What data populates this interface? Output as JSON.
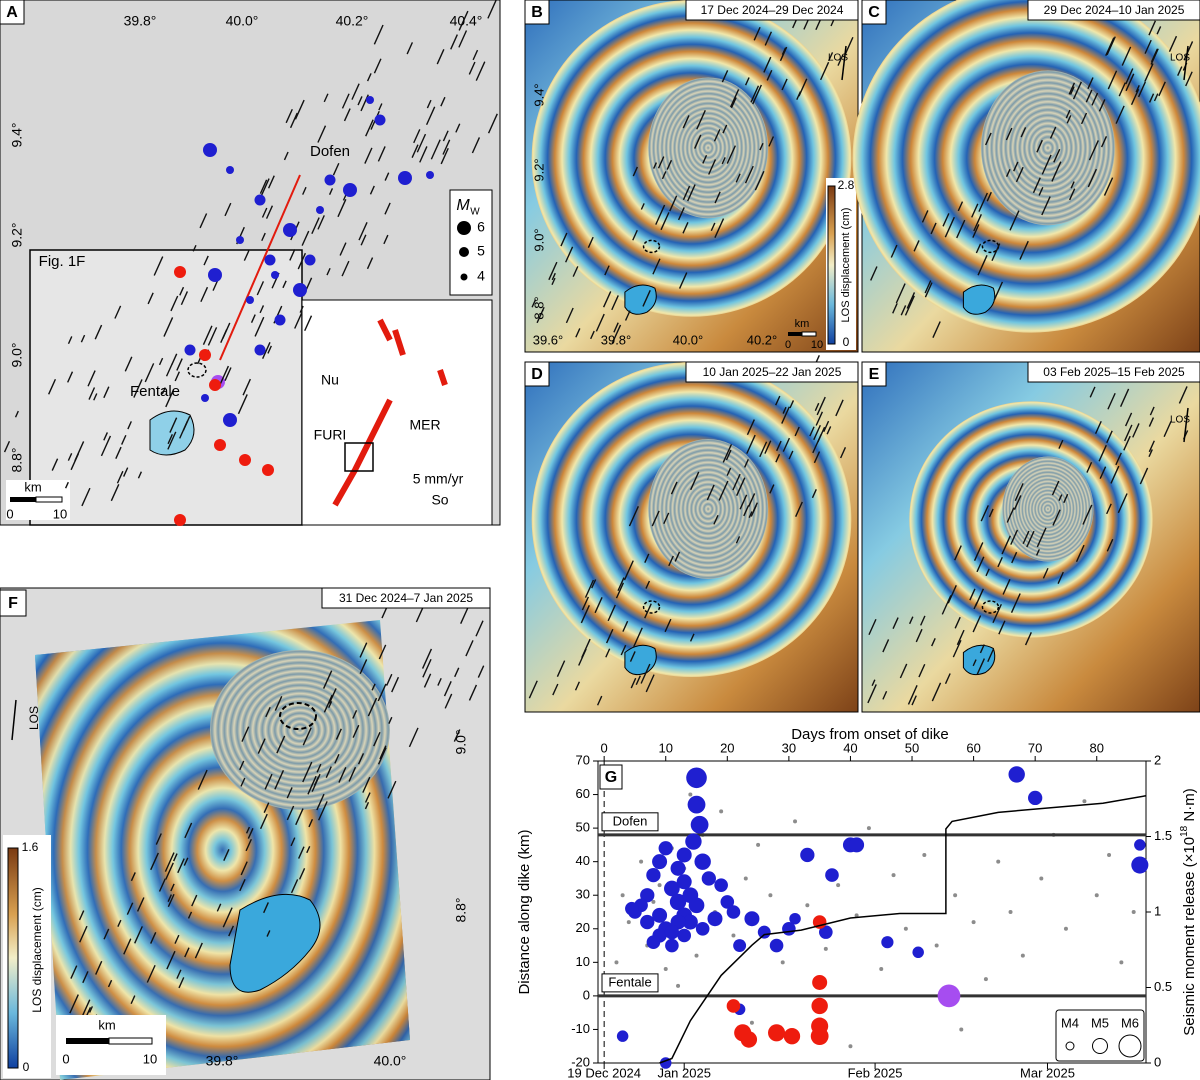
{
  "panels": {
    "A": {
      "label": "A",
      "lon_labels": [
        "39.8°",
        "40.0°",
        "40.2°",
        "40.4°"
      ],
      "lat_labels": [
        "9.4°",
        "9.2°",
        "9.0°",
        "8.8°"
      ],
      "places": [
        "Dofen",
        "Fentale"
      ],
      "inset_ref": "Fig. 1F",
      "legend_title": "M",
      "legend_sub": "W",
      "legend_sizes": [
        "6",
        "5",
        "4"
      ],
      "scale_unit": "km",
      "scale_labels": [
        "0",
        "10"
      ],
      "inset_labels": [
        "Nu",
        "FURI",
        "MER",
        "5 mm/yr",
        "So"
      ]
    },
    "B": {
      "label": "B",
      "dates": "17 Dec 2024–29 Dec 2024",
      "los": "LOS",
      "lat_labels": [
        "9.4°",
        "9.2°",
        "9.0°",
        "8.8°"
      ],
      "lon_labels": [
        "39.6°",
        "39.8°",
        "40.0°",
        "40.2°"
      ],
      "colorbar_max": "2.8",
      "colorbar_min": "0",
      "colorbar_title": "LOS displacement (cm)",
      "scale_unit": "km",
      "scale_labels": [
        "0",
        "10"
      ]
    },
    "C": {
      "label": "C",
      "dates": "29 Dec 2024–10 Jan 2025",
      "los": "LOS"
    },
    "D": {
      "label": "D",
      "dates": "10 Jan 2025–22 Jan 2025"
    },
    "E": {
      "label": "E",
      "dates": "03 Feb 2025–15 Feb 2025",
      "los": "LOS"
    },
    "F": {
      "label": "F",
      "dates": "31 Dec 2024–7 Jan 2025",
      "los": "LOS",
      "lat_labels": [
        "9.0°",
        "8.8°"
      ],
      "lon_labels": [
        "39.8°",
        "40.0°"
      ],
      "colorbar_max": "1.6",
      "colorbar_min": "0",
      "colorbar_title": "LOS displacement (cm)",
      "scale_unit": "km",
      "scale_labels": [
        "0",
        "10"
      ]
    }
  },
  "chart_data": {
    "type": "scatter",
    "label": "G",
    "xlabel": "Days from onset of dike",
    "ylabel": "Distance along dike (km)",
    "y2label": [
      "Seismic moment release (×10",
      "18",
      " N·m)"
    ],
    "xlim": [
      -1,
      88
    ],
    "xticks": [
      0,
      10,
      20,
      30,
      40,
      50,
      60,
      70,
      80
    ],
    "date_ticks": [
      {
        "value": 0,
        "label": "19 Dec 2024"
      },
      {
        "value": 13,
        "label": "Jan 2025"
      },
      {
        "value": 44,
        "label": "Feb 2025"
      },
      {
        "value": 72,
        "label": "Mar 2025"
      }
    ],
    "ylim": [
      -20,
      70
    ],
    "yticks": [
      -20,
      -10,
      0,
      10,
      20,
      30,
      40,
      50,
      60,
      70
    ],
    "y2lim": [
      0,
      2
    ],
    "y2ticks": [
      0,
      0.5,
      1,
      1.5,
      2
    ],
    "hlines": [
      {
        "value": 48,
        "label": "Dofen"
      },
      {
        "value": 0,
        "label": "Fentale"
      }
    ],
    "size_legend": [
      {
        "value": 4,
        "label": "M4"
      },
      {
        "value": 5,
        "label": "M5"
      },
      {
        "value": 6,
        "label": "M6"
      }
    ],
    "series": [
      {
        "type": "scatter",
        "color": "#8c8c8c",
        "x": [
          2,
          3,
          4,
          5,
          6,
          7,
          8,
          9,
          10,
          11,
          12,
          13,
          14,
          15,
          16,
          18,
          19,
          21,
          23,
          25,
          27,
          29,
          31,
          33,
          36,
          38,
          41,
          43,
          45,
          47,
          49,
          52,
          54,
          57,
          58,
          60,
          62,
          64,
          66,
          68,
          71,
          73,
          75,
          78,
          80,
          82,
          84,
          86,
          24,
          40
        ],
        "values": [
          10,
          30,
          22,
          5,
          40,
          15,
          28,
          33,
          8,
          44,
          3,
          38,
          60,
          12,
          48,
          25,
          55,
          18,
          35,
          45,
          30,
          10,
          52,
          27,
          14,
          33,
          24,
          50,
          8,
          36,
          20,
          42,
          15,
          30,
          -10,
          22,
          5,
          40,
          25,
          12,
          35,
          48,
          20,
          58,
          30,
          42,
          10,
          25,
          -8,
          -15
        ]
      },
      {
        "type": "scatter",
        "color": "#1f1fd0",
        "x": [
          15,
          15,
          15.5,
          14.5,
          13,
          12,
          10,
          9,
          8,
          7,
          6,
          5,
          4.5,
          11,
          12,
          13,
          14,
          10,
          9,
          8,
          11,
          12,
          13,
          14,
          15,
          16,
          17,
          16,
          18,
          20,
          22,
          24,
          26,
          28,
          30,
          31,
          33,
          36,
          37,
          40,
          41,
          46,
          51,
          67,
          70,
          87,
          87,
          10,
          3,
          22,
          19,
          21,
          7,
          9,
          11,
          13
        ],
        "values": [
          65,
          57,
          51,
          46,
          42,
          38,
          44,
          40,
          36,
          30,
          27,
          25,
          26,
          32,
          28,
          24,
          22,
          20,
          18,
          16,
          15,
          22,
          34,
          30,
          27,
          40,
          35,
          20,
          23,
          28,
          15,
          23,
          19,
          15,
          20,
          23,
          42,
          19,
          36,
          45,
          45,
          16,
          13,
          66,
          59,
          39,
          45,
          -20,
          -12,
          -4,
          33,
          25,
          22,
          24,
          19,
          18
        ],
        "sizes": [
          5.8,
          5.4,
          5.4,
          5.2,
          5.0,
          5.0,
          4.9,
          5.0,
          4.9,
          4.9,
          4.8,
          4.8,
          4.8,
          5.1,
          5.2,
          5.1,
          5.0,
          5.0,
          4.9,
          4.8,
          4.8,
          5.0,
          5.0,
          5.1,
          5.1,
          5.2,
          4.9,
          4.8,
          5.0,
          4.8,
          4.7,
          5.0,
          4.7,
          4.8,
          4.8,
          4.5,
          4.9,
          4.8,
          4.8,
          5.0,
          5.0,
          4.6,
          4.5,
          5.2,
          4.9,
          5.3,
          4.5,
          4.5,
          4.5,
          4.5,
          4.8,
          4.8,
          4.9,
          5.0,
          4.9,
          4.8
        ]
      },
      {
        "type": "scatter",
        "color": "#ee1c0e",
        "x": [
          21,
          22.5,
          23.5,
          28,
          35,
          35,
          35,
          35,
          35,
          30.5
        ],
        "values": [
          -3,
          -11,
          -13,
          -11,
          -9,
          -12,
          -3,
          4,
          22,
          -12
        ],
        "sizes": [
          4.8,
          5.3,
          5.2,
          5.3,
          5.3,
          5.4,
          5.2,
          5.0,
          4.8,
          5.2
        ]
      },
      {
        "type": "scatter",
        "color": "#a64df0",
        "x": [
          56
        ],
        "values": [
          0
        ],
        "sizes": [
          6.1
        ]
      },
      {
        "type": "line",
        "axis": "y2",
        "color": "#000000",
        "x": [
          9,
          11,
          14,
          19,
          24,
          26,
          32,
          40,
          48,
          55.5,
          55.5,
          56.5,
          64,
          81,
          88
        ],
        "values": [
          0,
          0.03,
          0.28,
          0.58,
          0.78,
          0.85,
          0.88,
          0.96,
          0.99,
          0.99,
          1.55,
          1.6,
          1.66,
          1.72,
          1.77
        ]
      }
    ]
  }
}
